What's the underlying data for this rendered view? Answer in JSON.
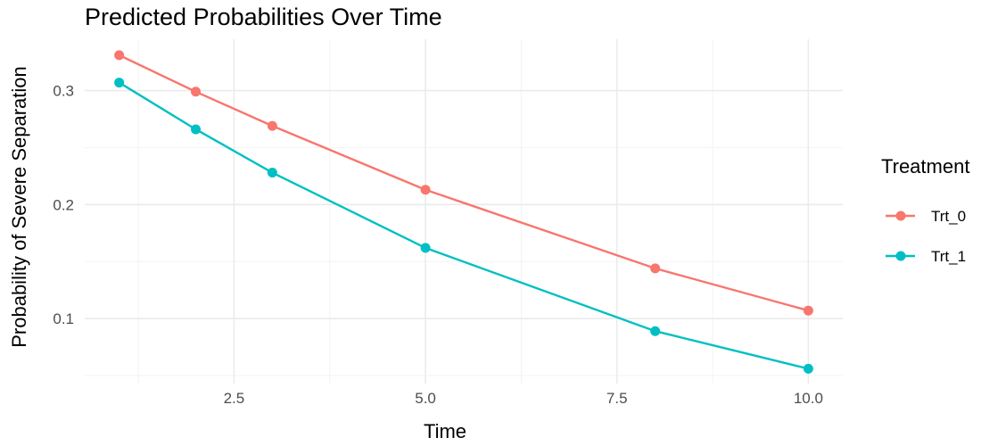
{
  "chart_data": {
    "type": "line",
    "title": "Predicted Probabilities Over Time",
    "xlabel": "Time",
    "ylabel": "Probability of Severe Separation",
    "x": [
      1,
      2,
      3,
      5,
      8,
      10
    ],
    "series": [
      {
        "name": "Trt_0",
        "color": "#F8766D",
        "values": [
          0.331,
          0.299,
          0.269,
          0.213,
          0.144,
          0.107
        ]
      },
      {
        "name": "Trt_1",
        "color": "#00BFC4",
        "values": [
          0.307,
          0.266,
          0.228,
          0.162,
          0.089,
          0.056
        ]
      }
    ],
    "xlim": [
      0.55,
      10.45
    ],
    "ylim": [
      0.043,
      0.345
    ],
    "xticks": [
      2.5,
      5.0,
      7.5,
      10.0
    ],
    "xtick_labels": [
      "2.5",
      "5.0",
      "7.5",
      "10.0"
    ],
    "yticks": [
      0.1,
      0.2,
      0.3
    ],
    "ytick_labels": [
      "0.1",
      "0.2",
      "0.3"
    ],
    "grid": true,
    "legend": {
      "title": "Treatment",
      "position": "right"
    }
  }
}
